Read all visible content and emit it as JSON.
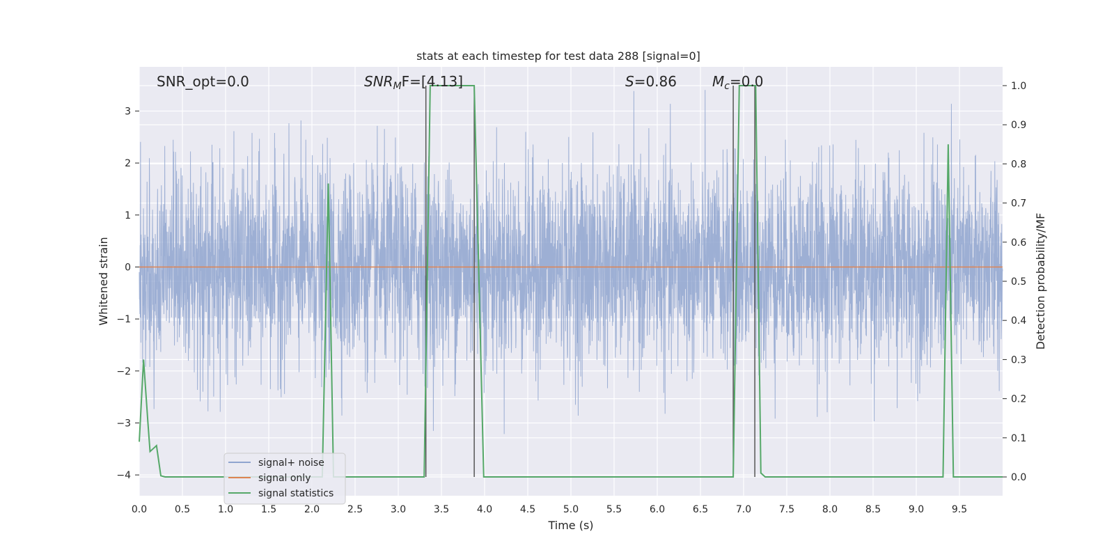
{
  "chart_data": {
    "type": "line",
    "title": "stats at each timestep for test data 288 [signal=0]",
    "xlabel": "Time (s)",
    "ylabel": "Whitened strain",
    "y2label": "Detection probability/MF",
    "xlim": [
      0,
      10
    ],
    "ylim": [
      -4.4,
      3.85
    ],
    "y2lim": [
      -0.048,
      1.048
    ],
    "xticks": [
      0.0,
      0.5,
      1.0,
      1.5,
      2.0,
      2.5,
      3.0,
      3.5,
      4.0,
      4.5,
      5.0,
      5.5,
      6.0,
      6.5,
      7.0,
      7.5,
      8.0,
      8.5,
      9.0,
      9.5
    ],
    "xtick_labels": [
      "0.0",
      "0.5",
      "1.0",
      "1.5",
      "2.0",
      "2.5",
      "3.0",
      "3.5",
      "4.0",
      "4.5",
      "5.0",
      "5.5",
      "6.0",
      "6.5",
      "7.0",
      "7.5",
      "8.0",
      "8.5",
      "9.0",
      "9.5"
    ],
    "yticks": [
      3,
      2,
      1,
      0,
      -1,
      -2,
      -3,
      -4
    ],
    "ytick_labels": [
      "3",
      "2",
      "1",
      "0",
      "−1",
      "−2",
      "−3",
      "−4"
    ],
    "y2ticks": [
      1.0,
      0.9,
      0.8,
      0.7,
      0.6,
      0.5,
      0.4,
      0.3,
      0.2,
      0.1,
      0.0
    ],
    "y2tick_labels": [
      "1.0",
      "0.9",
      "0.8",
      "0.7",
      "0.6",
      "0.5",
      "0.4",
      "0.3",
      "0.2",
      "0.1",
      "0.0"
    ],
    "grid": true,
    "legend_position": "lower-left",
    "legend": [
      "signal+ noise",
      "signal only",
      "signal statistics"
    ],
    "annotations": {
      "snr_opt": "SNR_opt=0.0",
      "snr_mf_main": "SNR",
      "snr_mf_sub": "M",
      "snr_mf_rest": "F=[4.13]",
      "s_var": "S",
      "s_rest": "=0.86",
      "mc_var": "M",
      "mc_sub": "c",
      "mc_rest": "=0.0"
    },
    "vertical_lines": [
      3.32,
      3.88,
      6.88,
      7.13
    ],
    "series": [
      {
        "name": "signal+ noise",
        "axis": "left",
        "color": "#8fa5cf",
        "kind": "noise",
        "amplitude_std": 0.95,
        "n_points": 4096
      },
      {
        "name": "signal only",
        "axis": "left",
        "color": "#dd8452",
        "x": [
          0,
          10
        ],
        "values": [
          0,
          0
        ]
      },
      {
        "name": "signal statistics",
        "axis": "right",
        "color": "#55a868",
        "x": [
          0.0,
          0.05,
          0.1,
          0.125,
          0.15,
          0.2,
          0.25,
          0.3,
          2.12,
          2.19,
          2.25,
          3.3,
          3.37,
          3.88,
          3.99,
          6.88,
          6.95,
          7.14,
          7.2,
          7.25,
          9.31,
          9.37,
          9.43,
          10.0
        ],
        "values": [
          0.09,
          0.3,
          0.14,
          0.065,
          0.07,
          0.08,
          0.003,
          0.0,
          0.0,
          0.75,
          0.0,
          0.0,
          1.0,
          1.0,
          0.0,
          0.0,
          1.0,
          1.0,
          0.01,
          0.0,
          0.0,
          0.85,
          0.0,
          0.0
        ]
      }
    ]
  }
}
